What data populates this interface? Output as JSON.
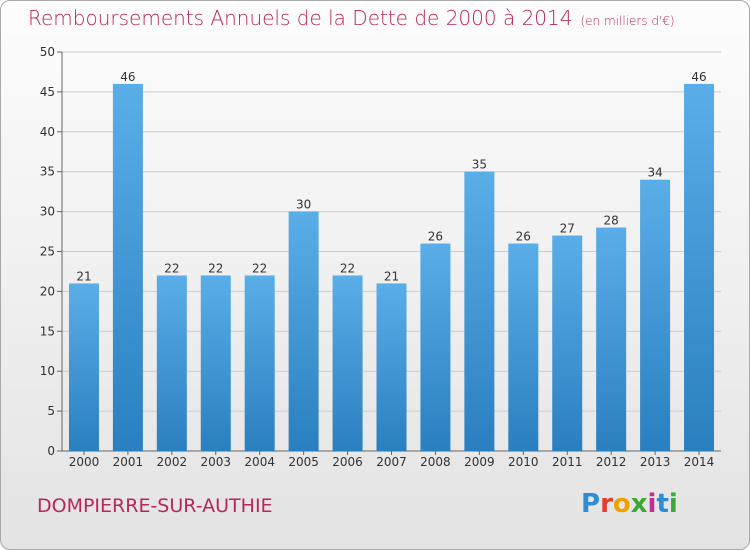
{
  "chart": {
    "title": "Remboursements Annuels de la Dette de 2000 à 2014",
    "subtitle": "(en milliers d'€)",
    "place": "DOMPIERRE-SUR-AUTHIE",
    "logo": {
      "p": "P",
      "r": "r",
      "o": "o",
      "x": "x",
      "i": "i",
      "t": "t",
      "i2": "i"
    }
  },
  "chart_data": {
    "type": "bar",
    "title": "Remboursements Annuels de la Dette de 2000 à 2014",
    "subtitle": "(en milliers d'€)",
    "categories": [
      "2000",
      "2001",
      "2002",
      "2003",
      "2004",
      "2005",
      "2006",
      "2007",
      "2008",
      "2009",
      "2010",
      "2011",
      "2012",
      "2013",
      "2014"
    ],
    "values": [
      21,
      46,
      22,
      22,
      22,
      30,
      22,
      21,
      26,
      35,
      26,
      27,
      28,
      34,
      46
    ],
    "ylim": [
      0,
      50
    ],
    "yticks": [
      0,
      5,
      10,
      15,
      20,
      25,
      30,
      35,
      40,
      45,
      50
    ],
    "grid": true,
    "colors": {
      "bar_top": "#5aaee8",
      "bar_bottom": "#2a7fc0",
      "grid": "#cccccc"
    }
  }
}
